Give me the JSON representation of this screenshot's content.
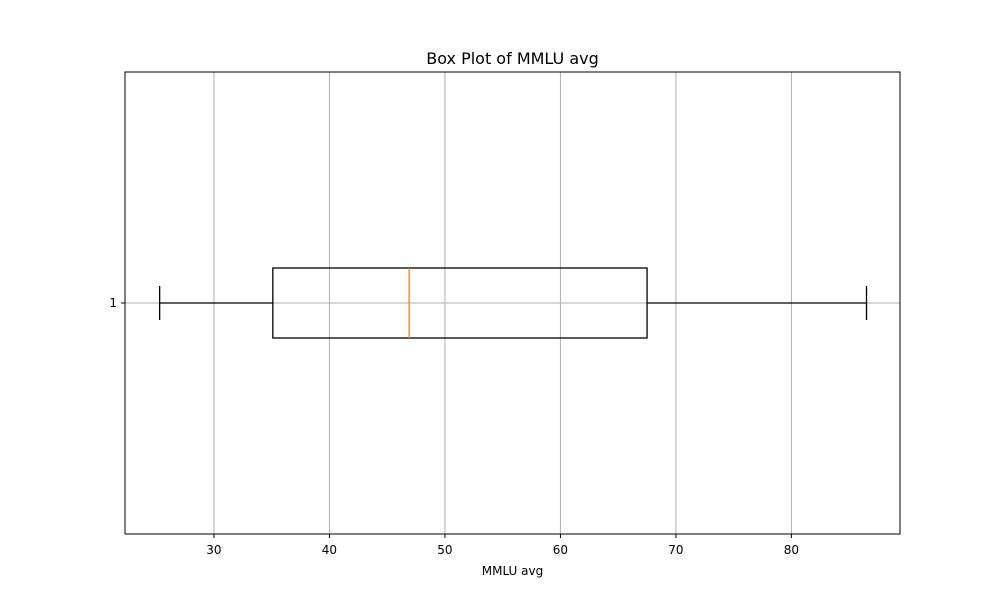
{
  "chart_data": {
    "type": "boxplot",
    "orientation": "horizontal",
    "title": "Box Plot of MMLU avg",
    "xlabel": "MMLU avg",
    "ylabel": "",
    "xlim": [
      22.3,
      89.4
    ],
    "x_ticks": [
      30,
      40,
      50,
      60,
      70,
      80
    ],
    "y_ticks": [
      "1"
    ],
    "grid": true,
    "boxes": [
      {
        "category": "1",
        "whisker_low": 25.3,
        "q1": 35.1,
        "median": 46.9,
        "q3": 67.5,
        "whisker_high": 86.5
      }
    ],
    "colors": {
      "box": "#000000",
      "median": "#ff7f0e",
      "grid": "#b0b0b0"
    }
  }
}
